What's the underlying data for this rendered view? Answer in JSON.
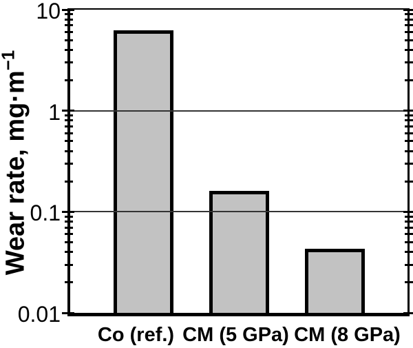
{
  "chart_data": {
    "type": "bar",
    "title": "",
    "categories": [
      "Co (ref.)",
      "CM (5 GPa)",
      "CM (8 GPa)"
    ],
    "values": [
      6.2,
      0.16,
      0.043
    ],
    "xlabel": "",
    "ylabel": "Wear rate, mg·m⁻¹",
    "ylabel_base": "Wear rate, mg·m",
    "ylabel_sup": "−1",
    "yscale": "log",
    "ylim": [
      0.01,
      10
    ],
    "yticks": [
      10,
      1,
      0.1,
      0.01
    ],
    "ytick_labels": [
      "10",
      "1",
      "0.1",
      "0.01"
    ],
    "gridline_values": [
      1,
      0.1
    ],
    "grid": "horizontal-major-only",
    "minor_ticks": "log decades 2-9 on left and right axes",
    "legend": "none",
    "colors": {
      "bar_fill": "#c2c2c2",
      "bar_border": "#000000",
      "axis": "#000000",
      "background": "#ffffff",
      "gridline": "#333333"
    }
  }
}
